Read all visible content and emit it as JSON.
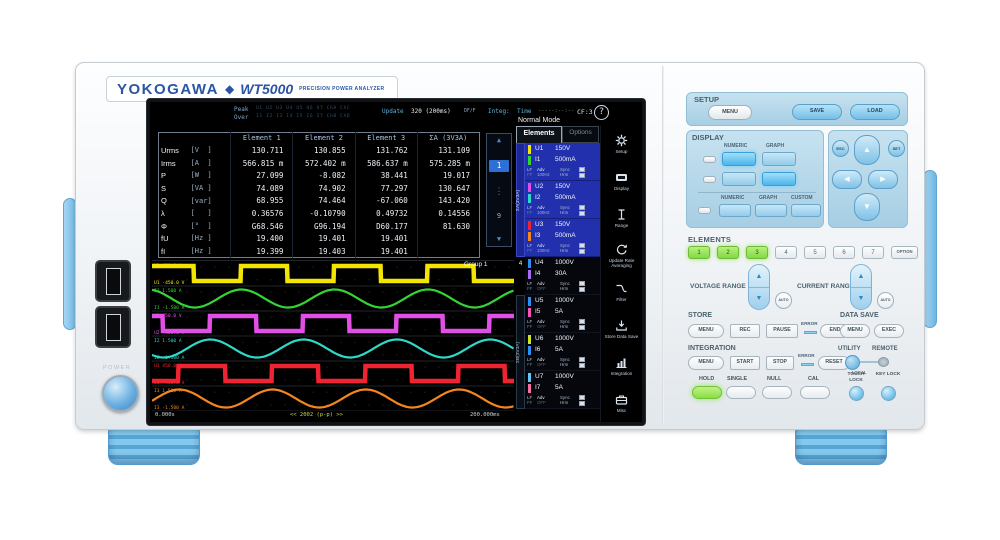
{
  "device": {
    "brand": "YOKOGAWA",
    "diamond": "◆",
    "model": "WT5000",
    "model_desc": "PRECISION POWER ANALYZER",
    "power_label": "POWER"
  },
  "colors": {
    "brand_blue": "#2b55a3",
    "panel_blue": "#b7d8e9",
    "lit_green": "#8ade46",
    "lit_blue": "#4db4ec",
    "foot_blue": "#7cc2e8"
  },
  "screen": {
    "status": {
      "peak_label": "Peak",
      "peak_items": "U1 U2 U3 U4 U5 U6 U7 ChA ChC",
      "over_label": "Over",
      "over_items": "I1 I2 I3 I4 I5 I6 I7 ChB ChD",
      "update_label": "Update",
      "update_value": "320 (200ms)",
      "update_suffix": "DF/F",
      "integ_label": "Integ:",
      "time_label": "Time",
      "time_value": "-----:--:--",
      "cf_value": "CF:3",
      "mode": "Normal Mode",
      "help": "?"
    },
    "pager": {
      "up": "▲",
      "current": "1",
      "dots": "⋮",
      "last": "9",
      "down": "▼"
    },
    "tabs": {
      "elements": "Elements",
      "options": "Options"
    },
    "wiring": {
      "sigma_a": "ΣA(3V3A)",
      "group4": "4",
      "sigma_b": "ΣB(3V3A)"
    },
    "element_groups": [
      {
        "u_label": "U1",
        "u_range": "150V",
        "u_color": "#f2e500",
        "i_label": "I1",
        "i_range": "500mA",
        "i_color": "#35d435",
        "lf": "LF",
        "ff": "FF",
        "adv": "Adv",
        "freq": "100Hz",
        "sync": "Sync",
        "hrm": "Hrm",
        "selected": true
      },
      {
        "u_label": "U2",
        "u_range": "150V",
        "u_color": "#e14fe6",
        "i_label": "I2",
        "i_range": "500mA",
        "i_color": "#2fd8c8",
        "lf": "LF",
        "ff": "FF",
        "adv": "Adv",
        "freq": "100Hz",
        "sync": "Sync",
        "hrm": "Hrm",
        "selected": true
      },
      {
        "u_label": "U3",
        "u_range": "150V",
        "u_color": "#ee2531",
        "i_label": "I3",
        "i_range": "500mA",
        "i_color": "#f5861f",
        "lf": "LF",
        "ff": "FF",
        "adv": "Adv",
        "freq": "100Hz",
        "sync": "Sync",
        "hrm": "Hrm",
        "selected": true
      },
      {
        "u_label": "U4",
        "u_range": "1000V",
        "u_color": "#2f8ef5",
        "i_label": "I4",
        "i_range": "30A",
        "i_color": "#a96bf7",
        "lf": "LF",
        "ff": "FF",
        "adv": "Adv",
        "freq": "OFF",
        "sync": "Sync",
        "hrm": "Hrm",
        "selected": false
      },
      {
        "u_label": "U5",
        "u_range": "1000V",
        "u_color": "#2f8ef5",
        "i_label": "I5",
        "i_range": "5A",
        "i_color": "#f555b8",
        "lf": "LF",
        "ff": "FF",
        "adv": "Adv",
        "freq": "OFF",
        "sync": "Sync",
        "hrm": "Hrm",
        "selected": false
      },
      {
        "u_label": "U6",
        "u_range": "1000V",
        "u_color": "#cfe32c",
        "i_label": "I6",
        "i_range": "5A",
        "i_color": "#2f8ef5",
        "lf": "LF",
        "ff": "FF",
        "adv": "Adv",
        "freq": "OFF",
        "sync": "Sync",
        "hrm": "Hrm",
        "selected": false
      },
      {
        "u_label": "U7",
        "u_range": "1000V",
        "u_color": "#5fc8f5",
        "i_label": "I7",
        "i_range": "5A",
        "i_color": "#f56fa0",
        "lf": "LF",
        "ff": "FF",
        "adv": "Adv",
        "freq": "OFF",
        "sync": "Sync",
        "hrm": "Hrm",
        "selected": false
      }
    ],
    "icon_rail": [
      {
        "icon": "gear-icon",
        "label": "Setup"
      },
      {
        "icon": "display-icon",
        "label": "Display"
      },
      {
        "icon": "range-icon",
        "label": "Range"
      },
      {
        "icon": "update-averaging-icon",
        "label": "Update Rate Averaging"
      },
      {
        "icon": "filter-icon",
        "label": "Filter"
      },
      {
        "icon": "store-data-save-icon",
        "label": "Store Data Save"
      },
      {
        "icon": "integration-icon",
        "label": "Integration"
      },
      {
        "icon": "misc-icon",
        "label": "Misc"
      }
    ],
    "waveform_footer": {
      "t_start": "0.000s",
      "zoom": "<< 2002 (p-p) >>",
      "t_end": "200.000ms",
      "group_label": "Group 1"
    }
  },
  "chart_data": [
    {
      "type": "table",
      "title": "Numeric measurement values",
      "columns": [
        "Element 1",
        "Element 2",
        "Element 3",
        "ΣA (3V3A)"
      ],
      "rows": [
        {
          "label": "Urms",
          "unit": "[V  ]",
          "values": [
            "130.711",
            "130.855",
            "131.762",
            "131.109"
          ]
        },
        {
          "label": "Irms",
          "unit": "[A  ]",
          "values": [
            "566.815 m",
            "572.402 m",
            "586.637 m",
            "575.285 m"
          ]
        },
        {
          "label": "P",
          "unit": "[W  ]",
          "values": [
            "27.099",
            "-8.082",
            "38.441",
            "19.017"
          ]
        },
        {
          "label": "S",
          "unit": "[VA ]",
          "values": [
            "74.089",
            "74.902",
            "77.297",
            "130.647"
          ]
        },
        {
          "label": "Q",
          "unit": "[var]",
          "values": [
            "68.955",
            "74.464",
            "-67.060",
            "143.420"
          ]
        },
        {
          "label": "λ",
          "unit": "[   ]",
          "values": [
            "0.36576",
            "-0.10790",
            "0.49732",
            "0.14556"
          ]
        },
        {
          "label": "Φ",
          "unit": "[°  ]",
          "values": [
            "G68.546",
            "G96.194",
            "D60.177",
            "81.630"
          ]
        },
        {
          "label": "fU",
          "unit": "[Hz ]",
          "values": [
            "19.400",
            "19.401",
            "19.401",
            ""
          ]
        },
        {
          "label": "fI",
          "unit": "[Hz ]",
          "values": [
            "19.399",
            "19.403",
            "19.401",
            ""
          ]
        }
      ]
    },
    {
      "type": "line",
      "title": "Waveform display Group 1",
      "x_start": "0.000s",
      "x_end": "200.000ms",
      "cycles_visible": 3.88,
      "grid": true,
      "legend_position": "inline-left",
      "series": [
        {
          "name": "U1",
          "shape": "square",
          "color": "#f2e500",
          "phase_deg": 18,
          "scale_top": "450.0 V",
          "scale_bottom": "-450.0 V"
        },
        {
          "name": "I1",
          "shape": "sine",
          "color": "#35d435",
          "phase_deg": 105,
          "scale_top": "1.500 A",
          "scale_bottom": "-1.500 A"
        },
        {
          "name": "U2",
          "shape": "square",
          "color": "#e14fe6",
          "phase_deg": 138,
          "scale_top": "450.0 V",
          "scale_bottom": "-450.0 V"
        },
        {
          "name": "I2",
          "shape": "sine",
          "color": "#2fd8c8",
          "phase_deg": 225,
          "scale_top": "1.500 A",
          "scale_bottom": "-1.500 A"
        },
        {
          "name": "U3",
          "shape": "square",
          "color": "#ee2531",
          "phase_deg": 258,
          "scale_top": "450.0 V",
          "scale_bottom": "-450.0 V"
        },
        {
          "name": "I3",
          "shape": "sine",
          "color": "#f5861f",
          "phase_deg": 345,
          "scale_top": "1.500 A",
          "scale_bottom": "-1.500 A"
        }
      ]
    }
  ],
  "panel": {
    "setup": {
      "title": "SETUP",
      "menu": "MENU",
      "save": "SAVE",
      "load": "LOAD"
    },
    "display": {
      "title": "DISPLAY",
      "numeric_top": "NUMERIC",
      "graph_top": "GRAPH",
      "numeric": "NUMERIC",
      "graph": "GRAPH",
      "custom": "CUSTOM"
    },
    "keypad": {
      "esc": "ESC",
      "set": "SET",
      "up": "▲",
      "down": "▼",
      "left": "◀",
      "right": "▶"
    },
    "elements": {
      "title": "ELEMENTS",
      "keys": [
        "1",
        "2",
        "3",
        "4",
        "5",
        "6",
        "7"
      ],
      "active": [
        "1",
        "2",
        "3"
      ],
      "option": "OPTION"
    },
    "ranges": {
      "voltage": "VOLTAGE RANGE",
      "current": "CURRENT RANGE",
      "auto": "AUTO",
      "up": "▲",
      "down": "▼"
    },
    "store": {
      "title": "STORE",
      "menu": "MENU",
      "rec": "REC",
      "pause": "PAUSE",
      "error": "ERROR",
      "end": "END"
    },
    "data_save": {
      "title": "DATA SAVE",
      "menu": "MENU",
      "exec": "EXEC"
    },
    "integration": {
      "title": "INTEGRATION",
      "menu": "MENU",
      "start": "START",
      "stop": "STOP",
      "error": "ERROR",
      "reset": "RESET"
    },
    "utility": {
      "utility": "UTILITY",
      "remote": "REMOTE",
      "local": "LOCAL"
    },
    "bottom": {
      "hold": "HOLD",
      "single": "SINGLE",
      "null_label": "NULL",
      "cal": "CAL",
      "touch_lock": "TOUCH LOCK",
      "key_lock": "KEY LOCK"
    }
  }
}
